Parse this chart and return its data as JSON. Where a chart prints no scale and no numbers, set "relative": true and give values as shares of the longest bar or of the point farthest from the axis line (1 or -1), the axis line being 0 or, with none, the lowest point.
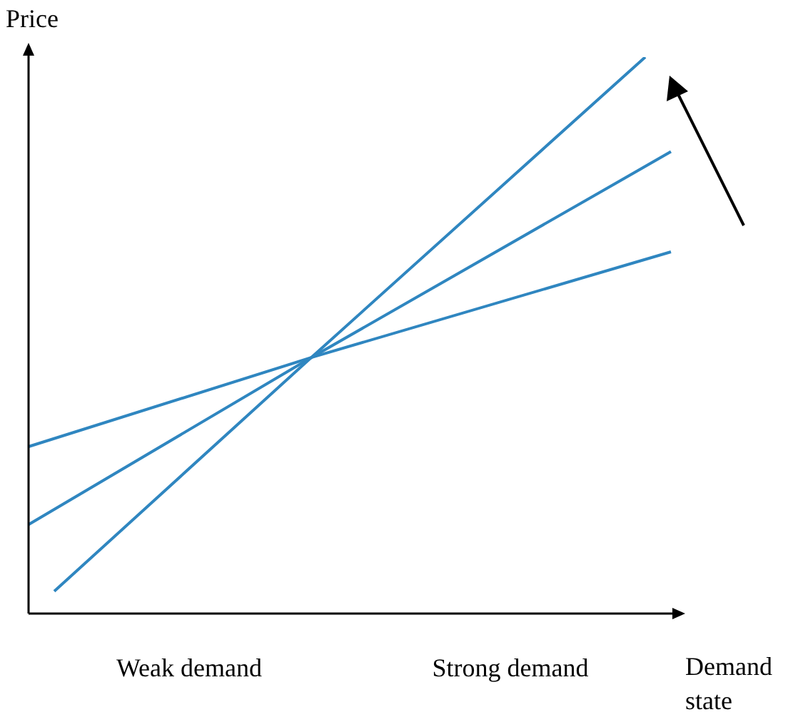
{
  "chart_data": {
    "type": "line",
    "relative": true,
    "ylabel": "Price",
    "xlabel": "Demand state",
    "annotations": [
      "Weak demand",
      "Strong demand"
    ],
    "legend": false,
    "marker": "none",
    "line_style": "solid",
    "categories": [
      null,
      null,
      null,
      null,
      null,
      null,
      null,
      null,
      null,
      null,
      null,
      null,
      null,
      null,
      null,
      null,
      null,
      null,
      null,
      null,
      null,
      null,
      null,
      null,
      null,
      null
    ],
    "series": [
      {
        "color": "#2f86c0",
        "values": [
          null,
          0.04,
          null,
          null,
          null,
          null,
          null,
          null,
          null,
          null,
          null,
          0.46,
          null,
          null,
          null,
          null,
          null,
          null,
          null,
          null,
          null,
          null,
          null,
          null,
          1,
          null
        ]
      },
      {
        "color": "#2f86c0",
        "values": [
          0.16,
          null,
          null,
          null,
          null,
          null,
          null,
          null,
          null,
          null,
          null,
          0.46,
          null,
          null,
          null,
          null,
          null,
          null,
          null,
          null,
          null,
          null,
          null,
          null,
          null,
          0.83
        ]
      },
      {
        "color": "#2f86c0",
        "values": [
          0.3,
          null,
          null,
          null,
          null,
          null,
          null,
          null,
          null,
          null,
          null,
          0.46,
          null,
          null,
          null,
          null,
          null,
          null,
          null,
          null,
          null,
          null,
          null,
          null,
          null,
          0.65
        ]
      }
    ]
  }
}
